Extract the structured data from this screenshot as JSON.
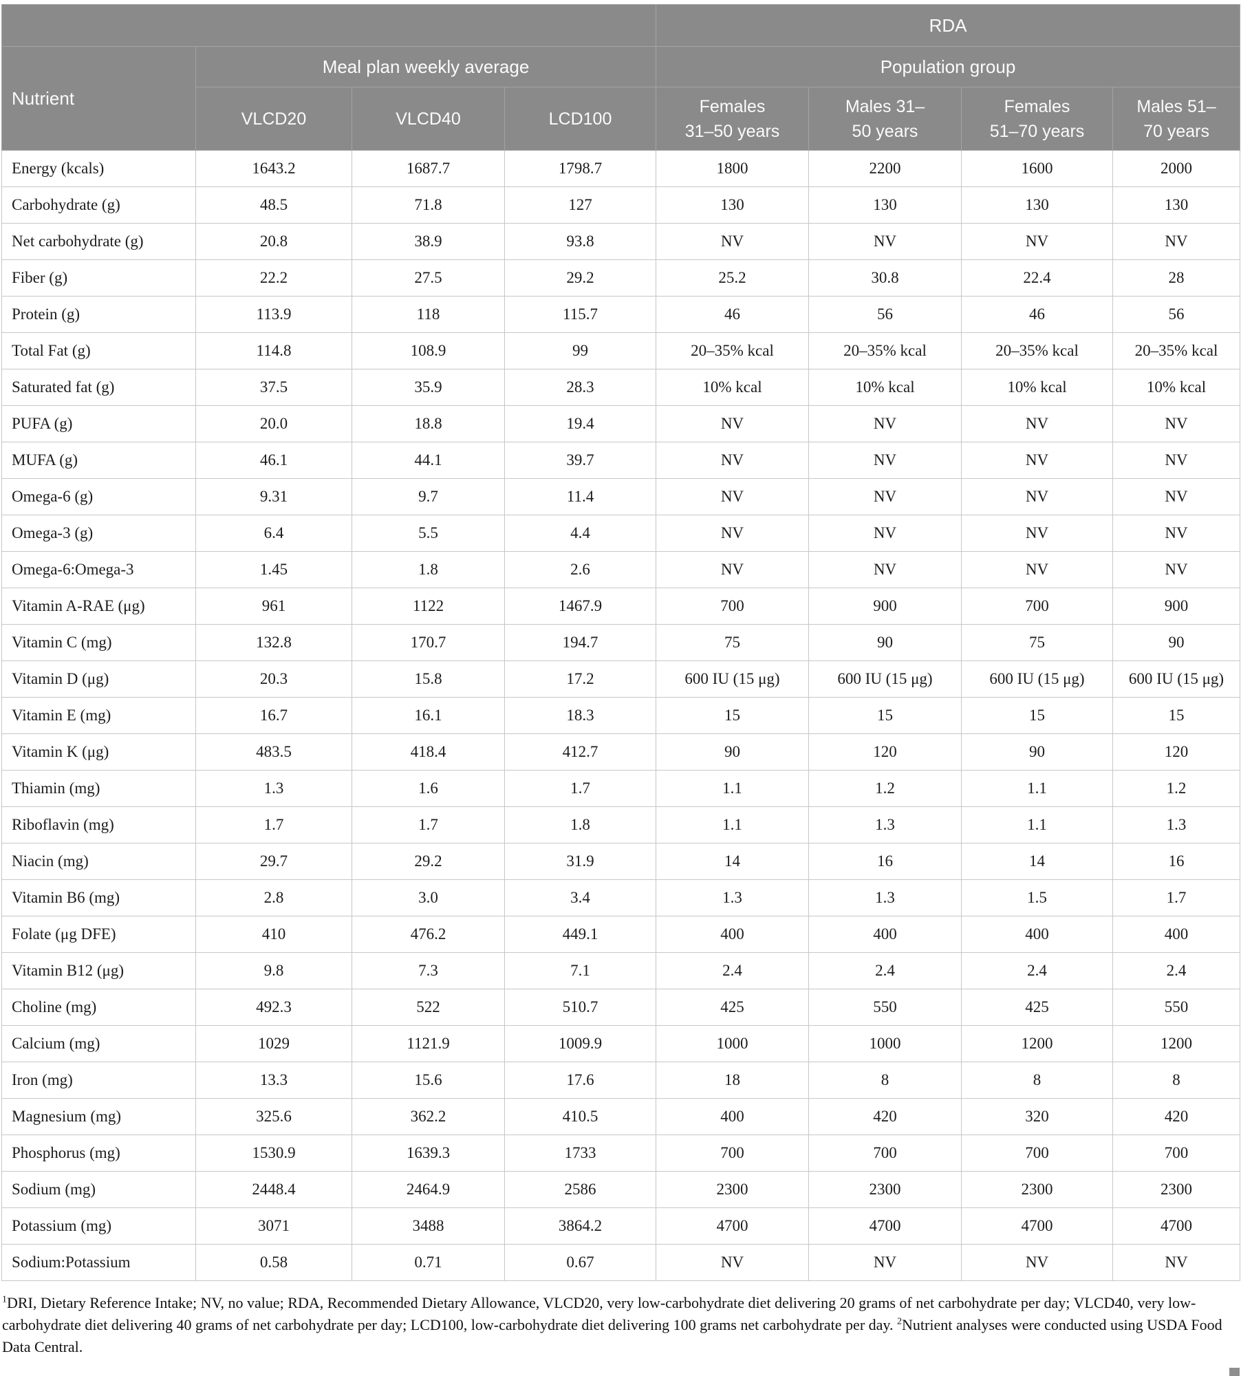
{
  "colors": {
    "header-bg": "#8a8a8a",
    "header-text": "#fbfbfb",
    "header-border": "#a4a4a4",
    "body-border": "#c7c7c7",
    "body-text": "#1c1c1c"
  },
  "table": {
    "header": {
      "rda": "RDA",
      "meal_plan": "Meal plan weekly average",
      "population": "Population group",
      "nutrient": "Nutrient",
      "columns": [
        "VLCD20",
        "VLCD40",
        "LCD100",
        "Females\n31–50 years",
        "Males 31–\n50 years",
        "Females\n51–70 years",
        "Males 51–\n70 years"
      ]
    },
    "rows": [
      [
        "Energy (kcals)",
        "1643.2",
        "1687.7",
        "1798.7",
        "1800",
        "2200",
        "1600",
        "2000"
      ],
      [
        "Carbohydrate (g)",
        "48.5",
        "71.8",
        "127",
        "130",
        "130",
        "130",
        "130"
      ],
      [
        "Net carbohydrate (g)",
        "20.8",
        "38.9",
        "93.8",
        "NV",
        "NV",
        "NV",
        "NV"
      ],
      [
        "Fiber (g)",
        "22.2",
        "27.5",
        "29.2",
        "25.2",
        "30.8",
        "22.4",
        "28"
      ],
      [
        "Protein (g)",
        "113.9",
        "118",
        "115.7",
        "46",
        "56",
        "46",
        "56"
      ],
      [
        "Total Fat (g)",
        "114.8",
        "108.9",
        "99",
        "20–35% kcal",
        "20–35% kcal",
        "20–35% kcal",
        "20–35% kcal"
      ],
      [
        "Saturated fat (g)",
        "37.5",
        "35.9",
        "28.3",
        "10% kcal",
        "10% kcal",
        "10% kcal",
        "10% kcal"
      ],
      [
        "PUFA (g)",
        "20.0",
        "18.8",
        "19.4",
        "NV",
        "NV",
        "NV",
        "NV"
      ],
      [
        "MUFA (g)",
        "46.1",
        "44.1",
        "39.7",
        "NV",
        "NV",
        "NV",
        "NV"
      ],
      [
        "Omega-6 (g)",
        "9.31",
        "9.7",
        "11.4",
        "NV",
        "NV",
        "NV",
        "NV"
      ],
      [
        "Omega-3 (g)",
        "6.4",
        "5.5",
        "4.4",
        "NV",
        "NV",
        "NV",
        "NV"
      ],
      [
        "Omega-6:Omega-3",
        "1.45",
        "1.8",
        "2.6",
        "NV",
        "NV",
        "NV",
        "NV"
      ],
      [
        "Vitamin A-RAE (μg)",
        "961",
        "1122",
        "1467.9",
        "700",
        "900",
        "700",
        "900"
      ],
      [
        "Vitamin C (mg)",
        "132.8",
        "170.7",
        "194.7",
        "75",
        "90",
        "75",
        "90"
      ],
      [
        "Vitamin D (μg)",
        "20.3",
        "15.8",
        "17.2",
        "600 IU (15 μg)",
        "600 IU (15 μg)",
        "600 IU (15 μg)",
        "600 IU (15 μg)"
      ],
      [
        "Vitamin E (mg)",
        "16.7",
        "16.1",
        "18.3",
        "15",
        "15",
        "15",
        "15"
      ],
      [
        "Vitamin K (μg)",
        "483.5",
        "418.4",
        "412.7",
        "90",
        "120",
        "90",
        "120"
      ],
      [
        "Thiamin (mg)",
        "1.3",
        "1.6",
        "1.7",
        "1.1",
        "1.2",
        "1.1",
        "1.2"
      ],
      [
        "Riboflavin (mg)",
        "1.7",
        "1.7",
        "1.8",
        "1.1",
        "1.3",
        "1.1",
        "1.3"
      ],
      [
        "Niacin (mg)",
        "29.7",
        "29.2",
        "31.9",
        "14",
        "16",
        "14",
        "16"
      ],
      [
        "Vitamin B6 (mg)",
        "2.8",
        "3.0",
        "3.4",
        "1.3",
        "1.3",
        "1.5",
        "1.7"
      ],
      [
        "Folate (μg DFE)",
        "410",
        "476.2",
        "449.1",
        "400",
        "400",
        "400",
        "400"
      ],
      [
        "Vitamin B12 (μg)",
        "9.8",
        "7.3",
        "7.1",
        "2.4",
        "2.4",
        "2.4",
        "2.4"
      ],
      [
        "Choline (mg)",
        "492.3",
        "522",
        "510.7",
        "425",
        "550",
        "425",
        "550"
      ],
      [
        "Calcium (mg)",
        "1029",
        "1121.9",
        "1009.9",
        "1000",
        "1000",
        "1200",
        "1200"
      ],
      [
        "Iron (mg)",
        "13.3",
        "15.6",
        "17.6",
        "18",
        "8",
        "8",
        "8"
      ],
      [
        "Magnesium (mg)",
        "325.6",
        "362.2",
        "410.5",
        "400",
        "420",
        "320",
        "420"
      ],
      [
        "Phosphorus (mg)",
        "1530.9",
        "1639.3",
        "1733",
        "700",
        "700",
        "700",
        "700"
      ],
      [
        "Sodium (mg)",
        "2448.4",
        "2464.9",
        "2586",
        "2300",
        "2300",
        "2300",
        "2300"
      ],
      [
        "Potassium (mg)",
        "3071",
        "3488",
        "3864.2",
        "4700",
        "4700",
        "4700",
        "4700"
      ],
      [
        "Sodium:Potassium",
        "0.58",
        "0.71",
        "0.67",
        "NV",
        "NV",
        "NV",
        "NV"
      ]
    ]
  },
  "footnotes": [
    {
      "marker": "1",
      "text": "DRI, Dietary Reference Intake; NV, no value; RDA, Recommended Dietary Allowance, VLCD20, very low-carbohydrate diet delivering 20 grams of net carbohydrate per day; VLCD40, very low-carbohydrate diet delivering 40 grams of net carbohydrate per day; LCD100, low-carbohydrate diet delivering 100 grams net carbohydrate per day. "
    },
    {
      "marker": "2",
      "text": "Nutrient analyses were conducted using USDA Food Data Central."
    }
  ]
}
